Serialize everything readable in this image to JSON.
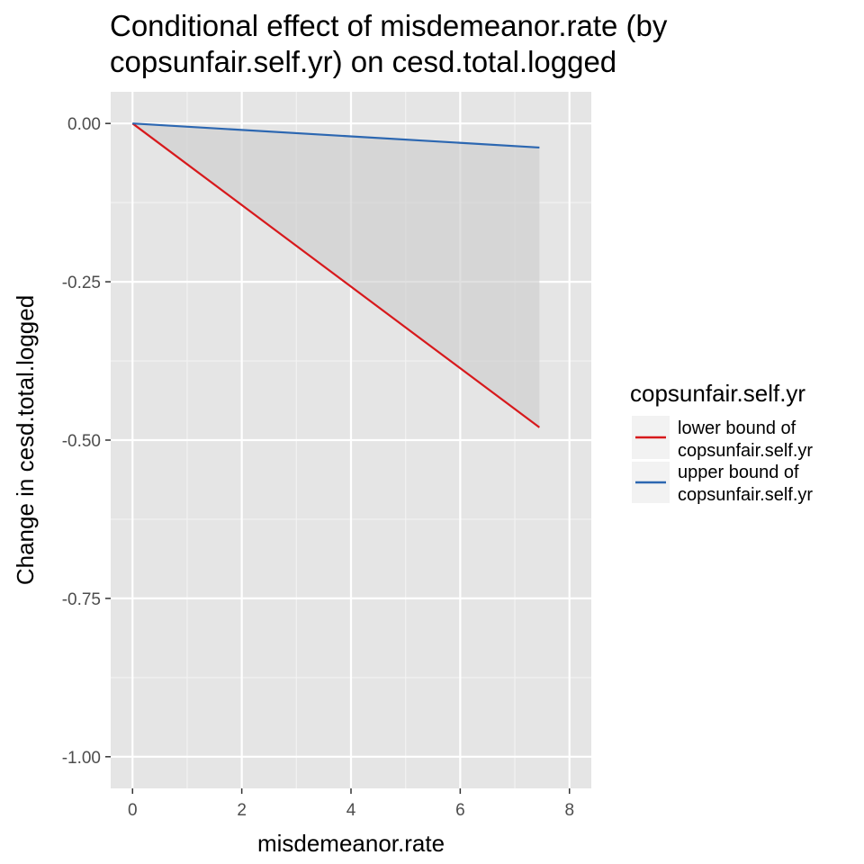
{
  "chart_data": {
    "type": "line",
    "title": "Conditional effect of misdemeanor.rate (by copsunfair.self.yr) on cesd.total.logged",
    "title_lines": [
      "Conditional effect of misdemeanor.rate (by",
      "copsunfair.self.yr) on cesd.total.logged"
    ],
    "xlabel": "misdemeanor.rate",
    "ylabel": "Change in cesd.total.logged",
    "xlim": [
      -0.4,
      8.4
    ],
    "ylim": [
      -1.05,
      0.05
    ],
    "x_ticks": [
      0,
      2,
      4,
      6,
      8
    ],
    "x_tick_labels": [
      "0",
      "2",
      "4",
      "6",
      "8"
    ],
    "y_ticks": [
      0,
      -0.25,
      -0.5,
      -0.75,
      -1.0
    ],
    "y_tick_labels": [
      "0.00",
      "-0.25",
      "-0.50",
      "-0.75",
      "-1.00"
    ],
    "grid": true,
    "panel_background": "#e5e5e5",
    "ribbon_color": "#cccccc",
    "legend": {
      "title": "copsunfair.self.yr",
      "position": "right",
      "entries": [
        {
          "lines": [
            "lower bound of",
            "copsunfair.self.yr"
          ]
        },
        {
          "lines": [
            "upper bound of",
            "copsunfair.self.yr"
          ]
        }
      ]
    },
    "series": [
      {
        "name": "lower bound of copsunfair.self.yr",
        "color": "#d7191c",
        "x": [
          0,
          7.45
        ],
        "y": [
          0,
          -0.48
        ]
      },
      {
        "name": "upper bound of copsunfair.self.yr",
        "color": "#2c67b1",
        "x": [
          0,
          7.45
        ],
        "y": [
          0,
          -0.038
        ]
      }
    ]
  }
}
